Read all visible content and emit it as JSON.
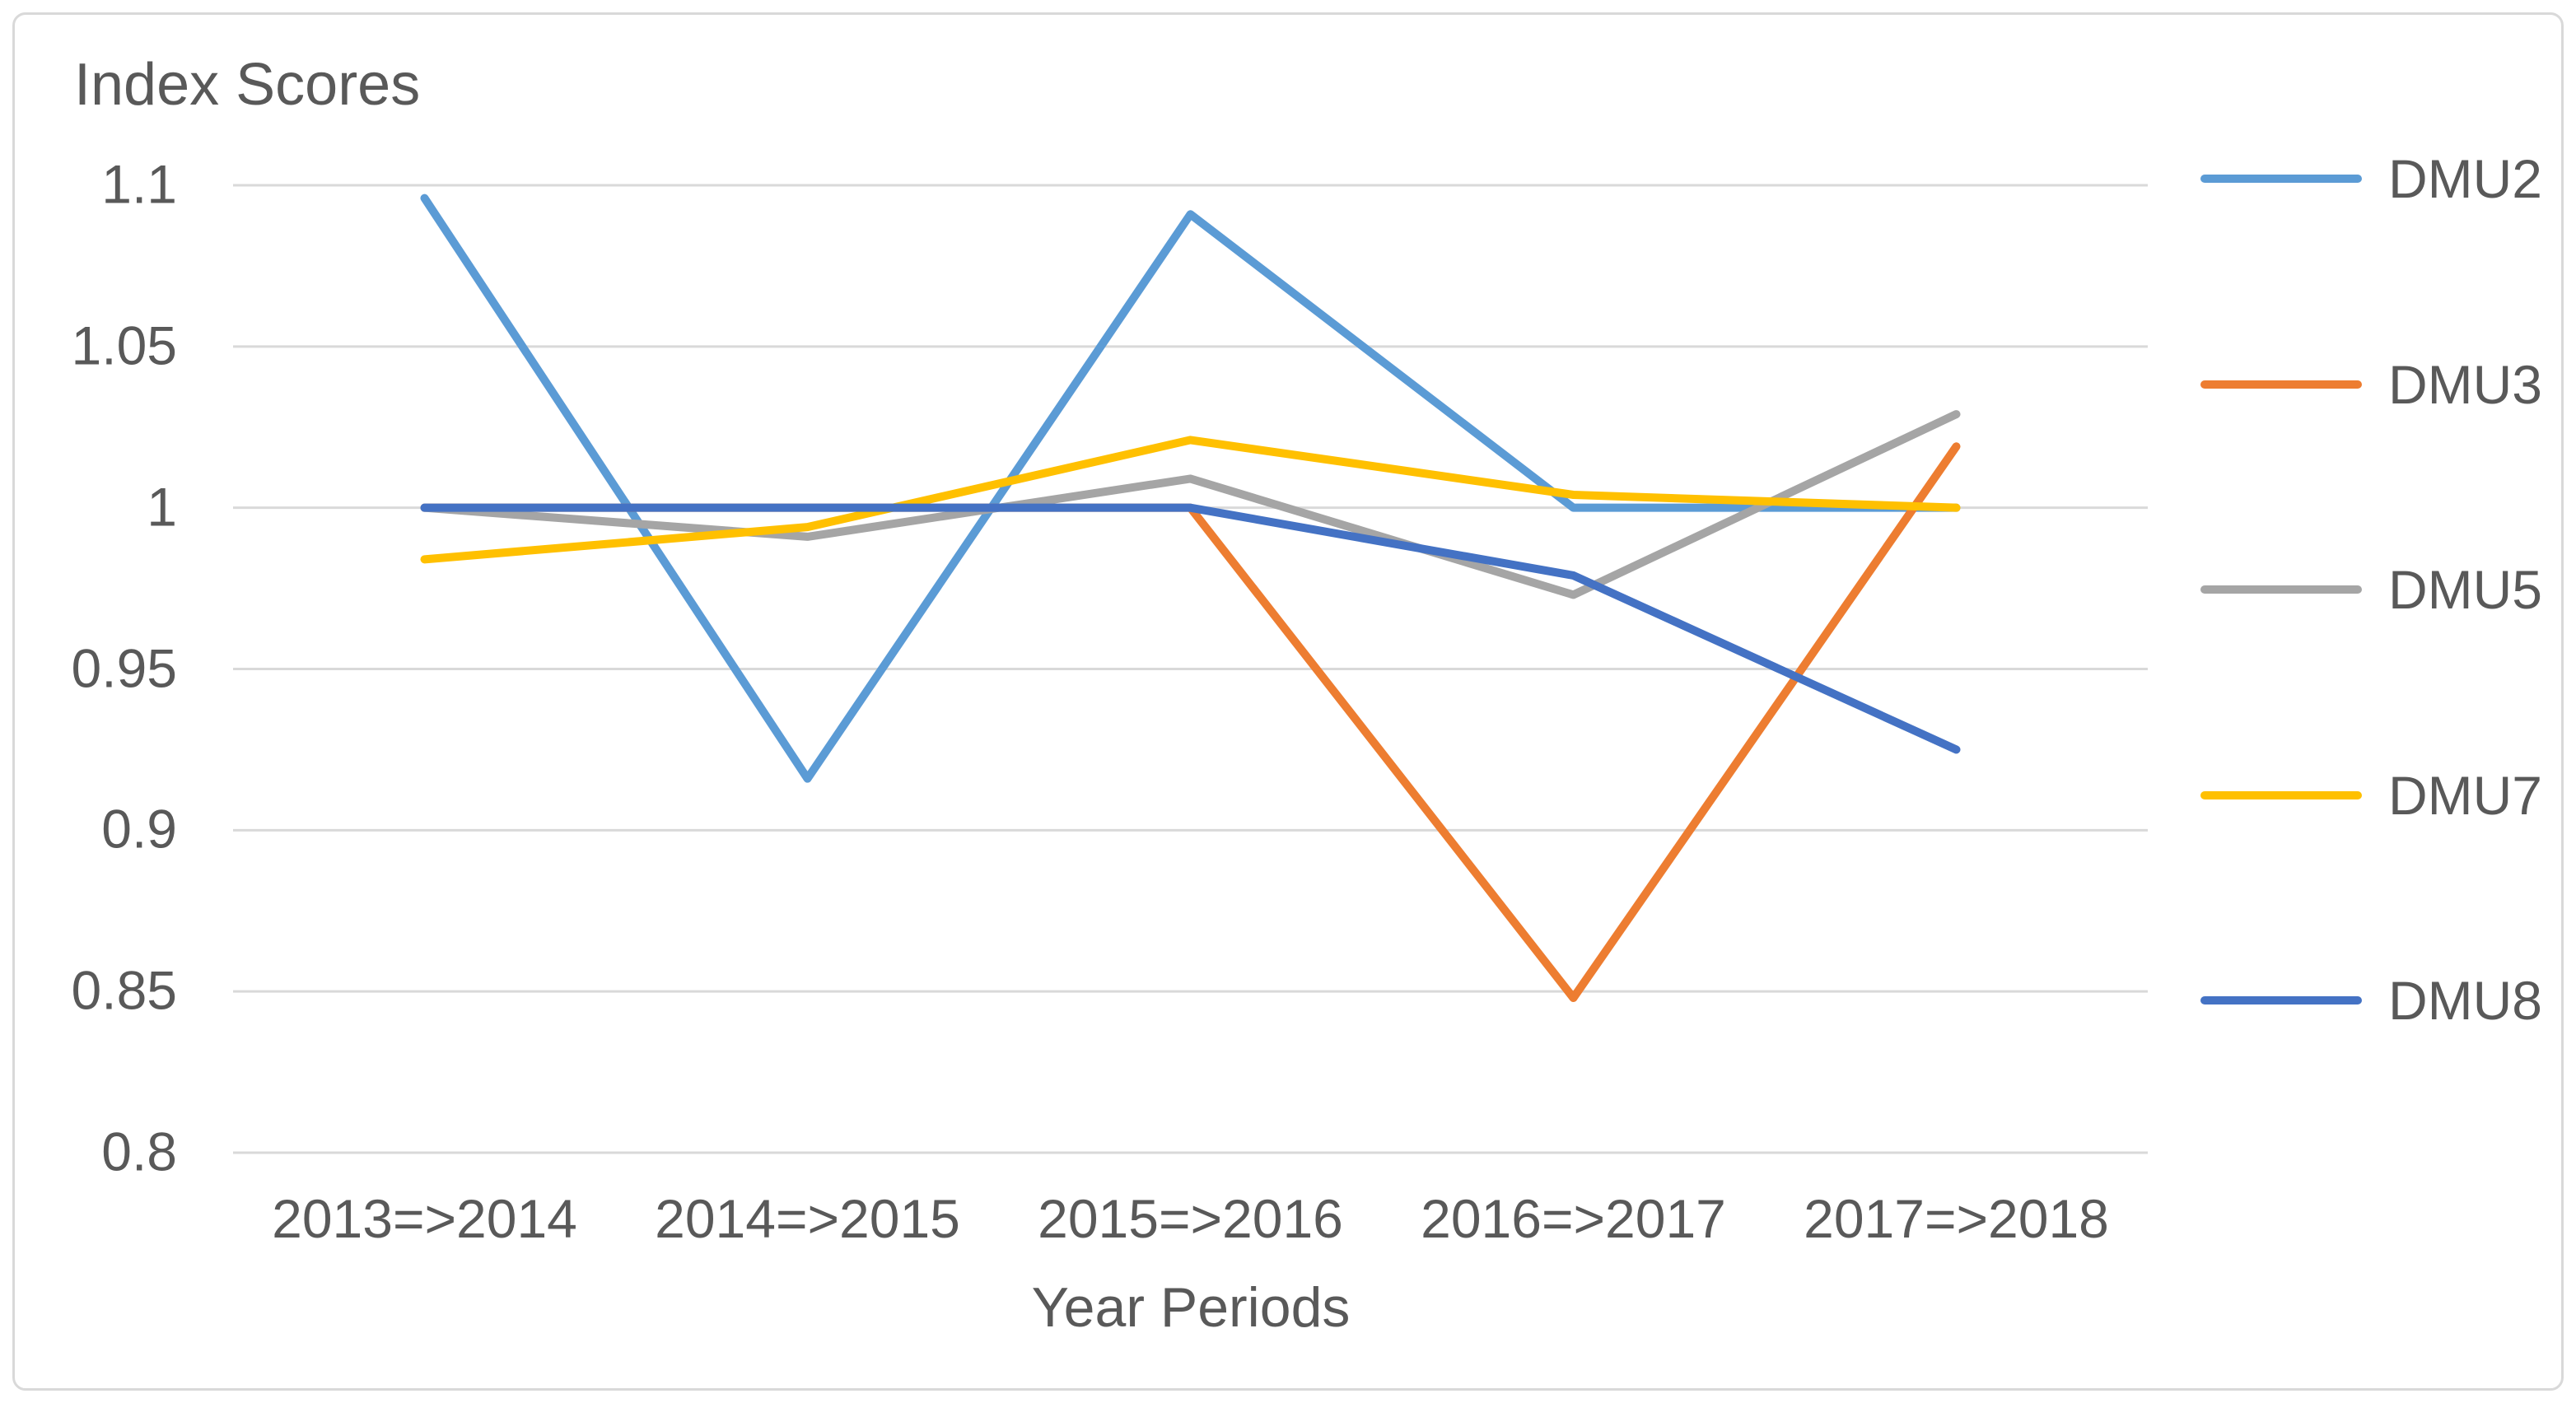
{
  "chart_data": {
    "type": "line",
    "title": "Index Scores",
    "xlabel": "Year Periods",
    "ylabel": "",
    "categories": [
      "2013=>2014",
      "2014=>2015",
      "2015=>2016",
      "2016=>2017",
      "2017=>2018"
    ],
    "series": [
      {
        "name": "DMU2",
        "color": "#5B9BD5",
        "values": [
          1.096,
          0.916,
          1.091,
          1.0,
          1.0
        ]
      },
      {
        "name": "DMU3",
        "color": "#ED7D31",
        "values": [
          1.0,
          1.0,
          1.0,
          0.848,
          1.019
        ]
      },
      {
        "name": "DMU5",
        "color": "#A5A5A5",
        "values": [
          1.0,
          0.991,
          1.009,
          0.973,
          1.029
        ]
      },
      {
        "name": "DMU7",
        "color": "#FFC000",
        "values": [
          0.984,
          0.994,
          1.021,
          1.004,
          1.0
        ]
      },
      {
        "name": "DMU8",
        "color": "#4472C4",
        "values": [
          1.0,
          1.0,
          1.0,
          0.979,
          0.925
        ]
      }
    ],
    "y_ticks": [
      {
        "value": 1.1,
        "label": "1.1"
      },
      {
        "value": 1.05,
        "label": "1.05"
      },
      {
        "value": 1.0,
        "label": "1"
      },
      {
        "value": 0.95,
        "label": "0.95"
      },
      {
        "value": 0.9,
        "label": "0.9"
      },
      {
        "value": 0.85,
        "label": "0.85"
      },
      {
        "value": 0.8,
        "label": "0.8"
      }
    ],
    "ylim": [
      0.8,
      1.1
    ],
    "grid": true,
    "legend_position": "right",
    "colors": {
      "grid": "#D9D9D9",
      "border": "#D9D9D9",
      "text": "#595959",
      "background": "#FFFFFF"
    }
  }
}
